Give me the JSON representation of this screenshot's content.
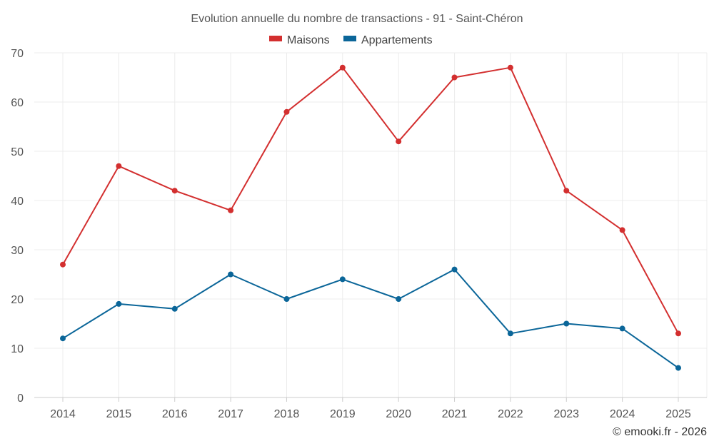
{
  "chart_data": {
    "type": "line",
    "title": "Evolution annuelle du nombre de transactions - 91 - Saint-Chéron",
    "categories": [
      "2014",
      "2015",
      "2016",
      "2017",
      "2018",
      "2019",
      "2020",
      "2021",
      "2022",
      "2023",
      "2024",
      "2025"
    ],
    "series": [
      {
        "name": "Maisons",
        "color": "#d32f2f",
        "values": [
          27,
          47,
          42,
          38,
          58,
          67,
          52,
          65,
          67,
          42,
          34,
          13
        ]
      },
      {
        "name": "Appartements",
        "color": "#0b6699",
        "values": [
          12,
          19,
          18,
          25,
          20,
          24,
          20,
          26,
          13,
          15,
          14,
          6
        ]
      }
    ],
    "yticks": [
      0,
      10,
      20,
      30,
      40,
      50,
      60,
      70
    ],
    "ylim": [
      0,
      70
    ],
    "grid": true,
    "legend_position": "top-center",
    "xlabel": "",
    "ylabel": ""
  },
  "credit": "© emooki.fr - 2026"
}
